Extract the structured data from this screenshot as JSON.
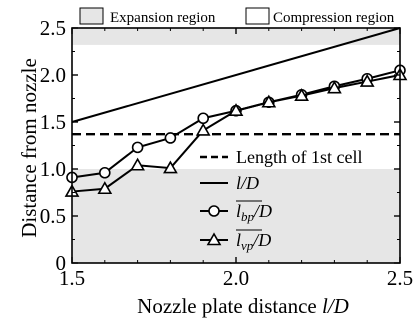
{
  "chart_data": {
    "type": "line",
    "xlabel_main": "Nozzle plate distance ",
    "xlabel_var": "l/D",
    "ylabel": "Distance from nozzle",
    "xlim": [
      1.5,
      2.5
    ],
    "ylim": [
      0,
      2.5
    ],
    "xticks": [
      "1.5",
      "2.0",
      "2.5"
    ],
    "yticks": [
      "0",
      "0.5",
      "1.0",
      "1.5",
      "2.0",
      "2.5"
    ],
    "grid": false,
    "regions": [
      {
        "name": "Expansion region",
        "type": "expansion",
        "y_from": 0.0,
        "y_to": 1.0,
        "color": "#e6e6e6"
      },
      {
        "name": "Compression region",
        "type": "compression",
        "y_from": 1.0,
        "y_to": 2.32,
        "color": "#ffffff"
      },
      {
        "name": "Expansion region",
        "type": "expansion",
        "y_from": 2.32,
        "y_to": 2.5,
        "color": "#e6e6e6"
      }
    ],
    "region_legend": [
      {
        "label": "Expansion region",
        "fill": "#e6e6e6"
      },
      {
        "label": "Compression region",
        "fill": "#ffffff"
      }
    ],
    "series": [
      {
        "name": "Length of 1st cell",
        "style": "dashed",
        "marker": "none",
        "x": [
          1.5,
          2.5
        ],
        "y": [
          1.37,
          1.37
        ]
      },
      {
        "name": "l/D",
        "style": "solid",
        "marker": "none",
        "x": [
          1.5,
          2.5
        ],
        "y": [
          1.5,
          2.5
        ]
      },
      {
        "name": "l_bp/D",
        "style": "solid",
        "marker": "circle",
        "x": [
          1.5,
          1.6,
          1.7,
          1.8,
          1.9,
          2.0,
          2.1,
          2.2,
          2.3,
          2.4,
          2.5
        ],
        "y": [
          0.91,
          0.96,
          1.23,
          1.33,
          1.54,
          1.62,
          1.71,
          1.79,
          1.88,
          1.96,
          2.05
        ]
      },
      {
        "name": "l_vp/D",
        "style": "solid",
        "marker": "triangle",
        "x": [
          1.5,
          1.6,
          1.7,
          1.8,
          1.9,
          2.0,
          2.1,
          2.2,
          2.3,
          2.4,
          2.5
        ],
        "y": [
          0.76,
          0.79,
          1.04,
          1.01,
          1.41,
          1.62,
          1.71,
          1.78,
          1.86,
          1.93,
          2.0
        ]
      }
    ],
    "legend": [
      {
        "label": "Length of 1st cell",
        "style": "dashed",
        "marker": "none"
      },
      {
        "label_var": "l",
        "label_tail": "/D",
        "overline": false,
        "style": "solid",
        "marker": "none"
      },
      {
        "label_var": "l",
        "label_sub": "bp",
        "label_tail": "/D",
        "overline": true,
        "style": "solid",
        "marker": "circle"
      },
      {
        "label_var": "l",
        "label_sub": "vp",
        "label_tail": "/D",
        "overline": true,
        "style": "solid",
        "marker": "triangle"
      }
    ]
  }
}
